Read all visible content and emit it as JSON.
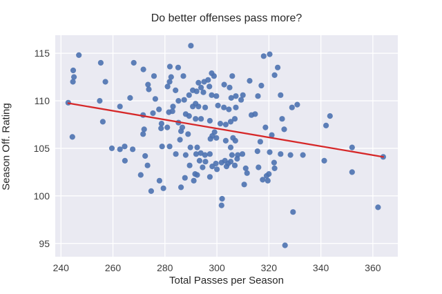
{
  "title": "Do better offenses pass more?",
  "colors": {
    "figure_bg": "#ffffff",
    "plot_bg": "#eaeaf2",
    "grid": "#ffffff",
    "point": "#4c72b0",
    "regression_line": "#d62728",
    "text": "#262626",
    "tick_text": "#3c3c3c"
  },
  "chart_data": {
    "type": "scatter",
    "title": "Do better offenses pass more?",
    "xlabel": "Total Passes per Season",
    "ylabel": "Season Off. Rating",
    "xlim": [
      237.8,
      369.6
    ],
    "ylim": [
      93.6,
      116.9
    ],
    "xticks": [
      240,
      260,
      280,
      300,
      320,
      340,
      360
    ],
    "yticks": [
      95,
      100,
      105,
      110,
      115
    ],
    "grid": true,
    "legend": false,
    "regression_line": {
      "x1": 242.8,
      "y1": 109.75,
      "x2": 364.0,
      "y2": 104.1
    },
    "points": [
      [
        246.9,
        114.8
      ],
      [
        255.3,
        114.0
      ],
      [
        268.0,
        114.0
      ],
      [
        244.7,
        113.2
      ],
      [
        271.7,
        113.3
      ],
      [
        281.9,
        113.6
      ],
      [
        285.1,
        113.5
      ],
      [
        245.0,
        112.5
      ],
      [
        275.8,
        112.6
      ],
      [
        282.4,
        112.5
      ],
      [
        244.6,
        112.0
      ],
      [
        257.1,
        112.0
      ],
      [
        281.8,
        112.0
      ],
      [
        273.5,
        111.7
      ],
      [
        281.0,
        111.5
      ],
      [
        273.8,
        111.2
      ],
      [
        284.1,
        111.1
      ],
      [
        266.6,
        110.3
      ],
      [
        276.3,
        110.2
      ],
      [
        254.9,
        110.0
      ],
      [
        242.8,
        109.8
      ],
      [
        262.7,
        109.4
      ],
      [
        277.7,
        109.1
      ],
      [
        271.6,
        108.5
      ],
      [
        275.4,
        108.7
      ],
      [
        272.0,
        107.0
      ],
      [
        271.6,
        106.5
      ],
      [
        256.1,
        107.8
      ],
      [
        244.4,
        106.2
      ],
      [
        278.7,
        107.6
      ],
      [
        278.5,
        107.1
      ],
      [
        280.9,
        107.2
      ],
      [
        281.5,
        108.8
      ],
      [
        282.9,
        108.9
      ],
      [
        283.1,
        109.4
      ],
      [
        285.2,
        107.7
      ],
      [
        285.8,
        105.9
      ],
      [
        290.0,
        115.8
      ],
      [
        318.0,
        114.7
      ],
      [
        320.3,
        114.9
      ],
      [
        323.4,
        113.5
      ],
      [
        322.2,
        112.7
      ],
      [
        287.1,
        112.6
      ],
      [
        298.0,
        112.9
      ],
      [
        298.9,
        112.6
      ],
      [
        305.9,
        112.6
      ],
      [
        292.9,
        111.9
      ],
      [
        295.1,
        112.0
      ],
      [
        296.6,
        112.2
      ],
      [
        302.8,
        111.7
      ],
      [
        304.9,
        111.4
      ],
      [
        312.6,
        112.1
      ],
      [
        317.1,
        111.6
      ],
      [
        293.9,
        111.4
      ],
      [
        297.1,
        111.5
      ],
      [
        290.7,
        111.1
      ],
      [
        292.2,
        111.0
      ],
      [
        294.8,
        110.9
      ],
      [
        289.3,
        110.6
      ],
      [
        287.4,
        110.1
      ],
      [
        285.2,
        110.0
      ],
      [
        298.0,
        110.6
      ],
      [
        299.8,
        110.5
      ],
      [
        305.5,
        110.3
      ],
      [
        307.3,
        110.5
      ],
      [
        310.0,
        110.6
      ],
      [
        309.3,
        110.1
      ],
      [
        315.8,
        110.5
      ],
      [
        324.5,
        110.6
      ],
      [
        291.8,
        109.7
      ],
      [
        290.7,
        109.4
      ],
      [
        292.9,
        109.4
      ],
      [
        295.5,
        109.3
      ],
      [
        300.4,
        109.5
      ],
      [
        302.7,
        109.3
      ],
      [
        304.6,
        109.1
      ],
      [
        307.3,
        109.3
      ],
      [
        314.7,
        108.6
      ],
      [
        313.3,
        108.5
      ],
      [
        328.9,
        109.3
      ],
      [
        330.9,
        109.6
      ],
      [
        288.0,
        108.6
      ],
      [
        289.3,
        108.4
      ],
      [
        291.8,
        108.1
      ],
      [
        293.9,
        108.1
      ],
      [
        297.3,
        107.9
      ],
      [
        301.3,
        107.6
      ],
      [
        303.4,
        107.5
      ],
      [
        305.3,
        107.8
      ],
      [
        306.9,
        108.1
      ],
      [
        286.7,
        107.2
      ],
      [
        286.2,
        106.8
      ],
      [
        288.9,
        106.5
      ],
      [
        299.1,
        106.7
      ],
      [
        298.2,
        106.3
      ],
      [
        297.5,
        106.0
      ],
      [
        299.8,
        106.1
      ],
      [
        306.2,
        106.1
      ],
      [
        307.1,
        105.8
      ],
      [
        303.4,
        105.8
      ],
      [
        318.7,
        107.2
      ],
      [
        321.1,
        106.4
      ],
      [
        325.1,
        108.1
      ],
      [
        325.9,
        107.0
      ],
      [
        316.7,
        105.7
      ],
      [
        343.5,
        108.4
      ],
      [
        342.0,
        107.4
      ],
      [
        352.0,
        105.1
      ],
      [
        259.6,
        105.0
      ],
      [
        262.7,
        104.9
      ],
      [
        264.5,
        105.2
      ],
      [
        267.6,
        104.9
      ],
      [
        264.6,
        103.7
      ],
      [
        272.4,
        104.2
      ],
      [
        273.3,
        103.2
      ],
      [
        270.7,
        102.2
      ],
      [
        277.9,
        101.6
      ],
      [
        274.7,
        100.5
      ],
      [
        279.4,
        100.8
      ],
      [
        278.9,
        105.2
      ],
      [
        281.8,
        105.2
      ],
      [
        284.2,
        104.4
      ],
      [
        288.0,
        104.3
      ],
      [
        289.8,
        105.1
      ],
      [
        292.4,
        105.1
      ],
      [
        292.0,
        104.4
      ],
      [
        293.8,
        104.5
      ],
      [
        295.4,
        104.3
      ],
      [
        297.3,
        104.4
      ],
      [
        305.8,
        104.3
      ],
      [
        305.3,
        105.1
      ],
      [
        308.0,
        104.3
      ],
      [
        309.8,
        104.4
      ],
      [
        315.6,
        104.7
      ],
      [
        320.3,
        104.6
      ],
      [
        324.5,
        104.4
      ],
      [
        328.3,
        104.3
      ],
      [
        333.1,
        104.3
      ],
      [
        289.5,
        103.2
      ],
      [
        293.3,
        103.7
      ],
      [
        295.6,
        103.6
      ],
      [
        294.5,
        103.0
      ],
      [
        291.6,
        102.3
      ],
      [
        292.4,
        102.2
      ],
      [
        287.7,
        101.9
      ],
      [
        291.1,
        101.6
      ],
      [
        286.2,
        100.9
      ],
      [
        297.3,
        102.0
      ],
      [
        298.2,
        103.1
      ],
      [
        299.6,
        103.4
      ],
      [
        300.0,
        102.8
      ],
      [
        301.8,
        103.5
      ],
      [
        303.1,
        103.7
      ],
      [
        304.3,
        103.4
      ],
      [
        305.3,
        103.6
      ],
      [
        303.7,
        103.1
      ],
      [
        306.9,
        103.2
      ],
      [
        307.8,
        103.9
      ],
      [
        311.1,
        102.9
      ],
      [
        311.6,
        102.4
      ],
      [
        316.0,
        103.0
      ],
      [
        310.5,
        101.2
      ],
      [
        317.6,
        101.7
      ],
      [
        319.1,
        102.1
      ],
      [
        320.0,
        102.3
      ],
      [
        319.6,
        101.6
      ],
      [
        322.0,
        103.5
      ],
      [
        322.2,
        102.9
      ],
      [
        302.0,
        99.7
      ],
      [
        301.8,
        99.0
      ],
      [
        329.3,
        98.3
      ],
      [
        326.2,
        94.8
      ],
      [
        341.3,
        103.7
      ],
      [
        352.0,
        102.5
      ],
      [
        362.0,
        98.8
      ],
      [
        364.0,
        104.1
      ]
    ]
  }
}
